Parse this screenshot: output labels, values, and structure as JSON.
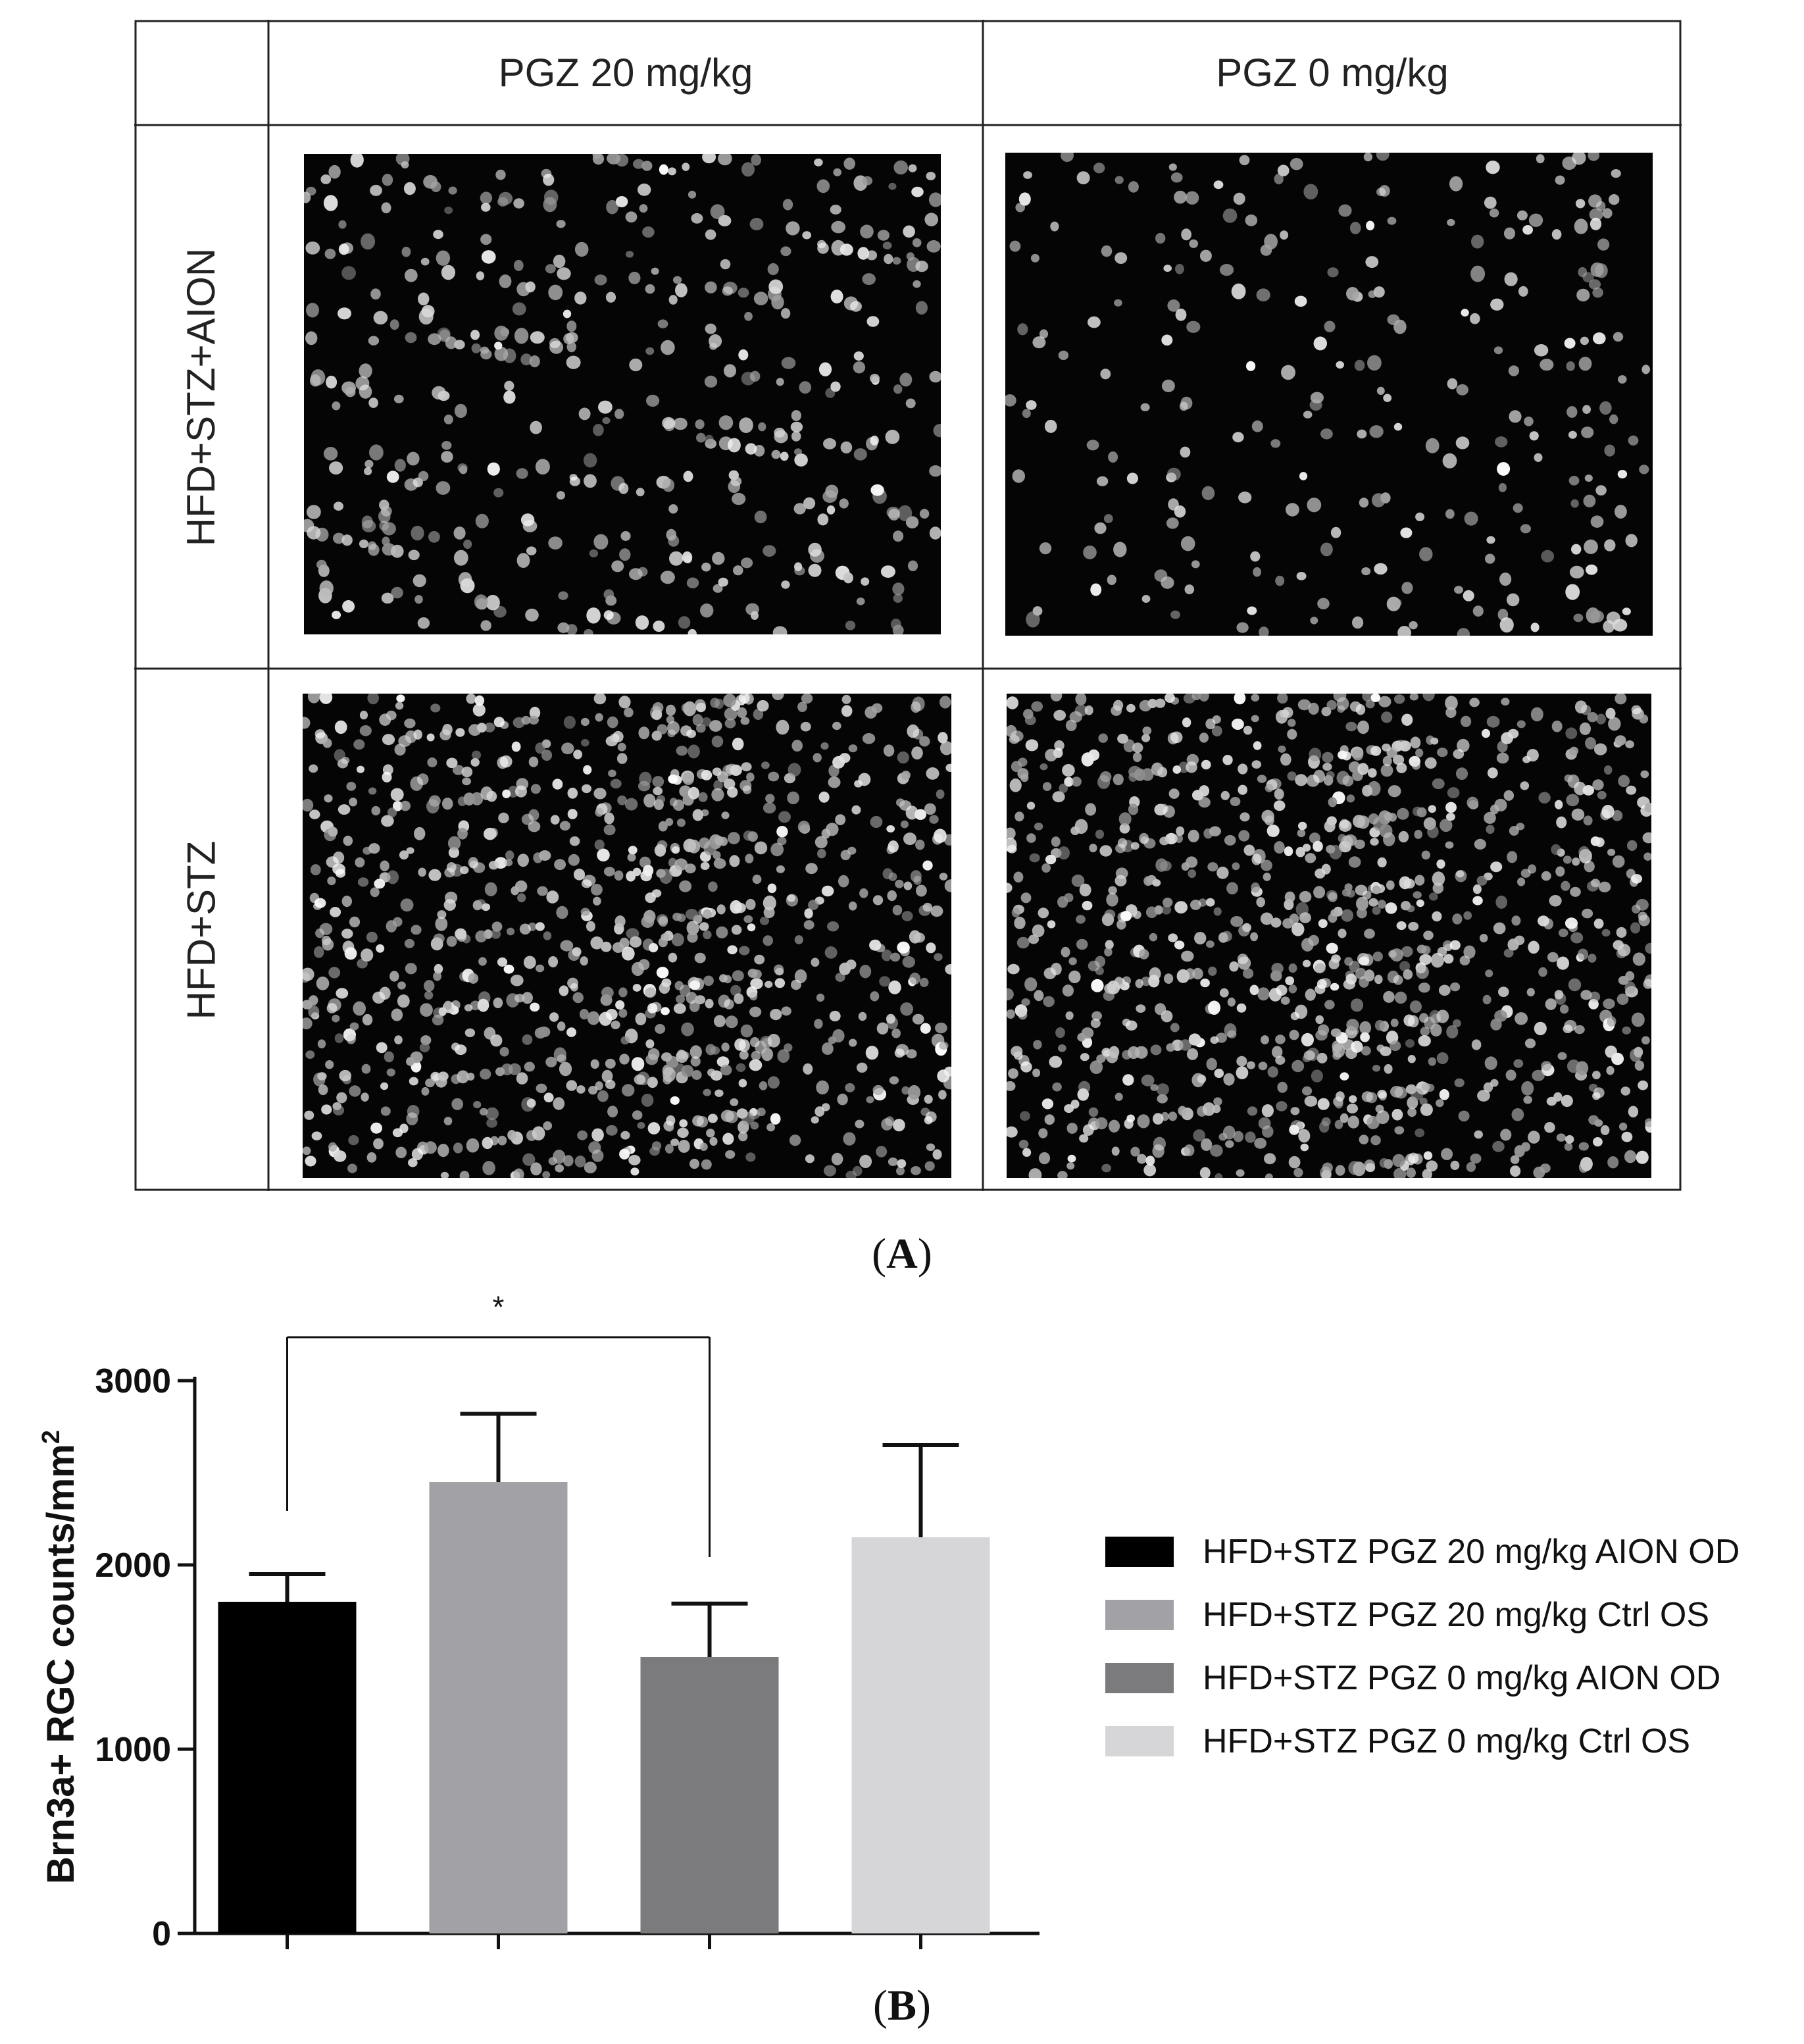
{
  "panel_a": {
    "label": "A",
    "column_headers": [
      "PGZ 20 mg/kg",
      "PGZ 0 mg/kg"
    ],
    "row_headers": [
      "HFD+STZ+AION",
      "HFD+STZ"
    ]
  },
  "panel_b": {
    "label": "B",
    "significance_marker": "*"
  },
  "colors": {
    "series": [
      "#000000",
      "#a2a2a6",
      "#7b7b7d",
      "#d6d6d8"
    ],
    "axis": "#111111"
  },
  "chart_data": {
    "type": "bar",
    "ylabel": "Brn3a+ RGC counts/mm",
    "ylabel_superscript": "2",
    "ylim": [
      0,
      3000
    ],
    "yticks": [
      0,
      1000,
      2000,
      3000
    ],
    "series": [
      {
        "name": "HFD+STZ PGZ 20 mg/kg AION OD",
        "value": 1800,
        "error": 150
      },
      {
        "name": "HFD+STZ PGZ 20 mg/kg Ctrl OS",
        "value": 2450,
        "error": 370
      },
      {
        "name": "HFD+STZ PGZ 0 mg/kg AION OD",
        "value": 1500,
        "error": 290
      },
      {
        "name": "HFD+STZ PGZ 0 mg/kg Ctrl OS",
        "value": 2150,
        "error": 500
      }
    ],
    "significance": {
      "between": [
        0,
        2
      ],
      "label": "*"
    },
    "legend_position": "right",
    "grid": false
  }
}
